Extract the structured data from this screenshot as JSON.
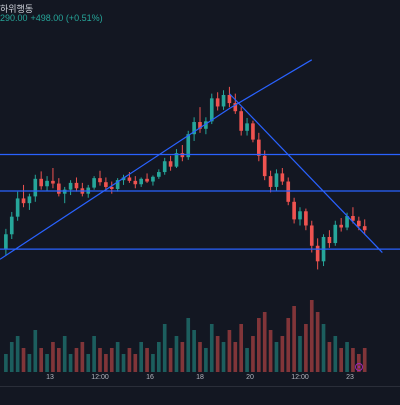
{
  "header": {
    "title": "하위행동",
    "values_text": "290.00",
    "change_text": "+498.00 (+0.51%)"
  },
  "colors": {
    "background": "#131722",
    "up": "#26a69a",
    "down": "#ef5350",
    "trendline": "#2962ff",
    "volume_up": "rgba(38,166,154,0.5)",
    "volume_down": "rgba(239,83,80,0.5)",
    "marker": "#9c27b0"
  },
  "chart_data": {
    "type": "candlestick",
    "x_ticks": [
      "13",
      "12:00",
      "16",
      "18",
      "20",
      "12:00",
      "23"
    ],
    "candles": [
      [
        2.0,
        5.0,
        1.0,
        4.2
      ],
      [
        4.2,
        7.5,
        3.5,
        6.8
      ],
      [
        6.8,
        10.5,
        6.2,
        9.5
      ],
      [
        9.5,
        11.5,
        8.2,
        8.8
      ],
      [
        8.8,
        10.2,
        7.8,
        9.8
      ],
      [
        9.8,
        13.0,
        9.0,
        12.4
      ],
      [
        12.4,
        13.5,
        10.8,
        11.3
      ],
      [
        11.3,
        12.8,
        10.6,
        12.1
      ],
      [
        12.1,
        14.0,
        11.0,
        11.7
      ],
      [
        11.7,
        12.5,
        9.8,
        10.2
      ],
      [
        10.2,
        11.2,
        8.8,
        10.8
      ],
      [
        10.8,
        12.2,
        10.0,
        11.8
      ],
      [
        11.8,
        12.6,
        10.5,
        11.0
      ],
      [
        11.0,
        11.8,
        9.8,
        10.2
      ],
      [
        10.2,
        11.5,
        9.6,
        11.1
      ],
      [
        11.1,
        12.8,
        10.8,
        12.5
      ],
      [
        12.5,
        13.6,
        11.4,
        11.9
      ],
      [
        11.9,
        12.6,
        10.6,
        11.2
      ],
      [
        11.2,
        12.0,
        10.2,
        10.9
      ],
      [
        10.9,
        12.5,
        10.5,
        12.2
      ],
      [
        12.2,
        13.0,
        11.5,
        12.6
      ],
      [
        12.6,
        13.4,
        11.8,
        12.1
      ],
      [
        12.1,
        12.8,
        11.0,
        11.6
      ],
      [
        11.6,
        12.6,
        11.2,
        12.4
      ],
      [
        12.4,
        13.2,
        11.8,
        12.0
      ],
      [
        12.0,
        12.9,
        11.4,
        12.7
      ],
      [
        12.7,
        13.8,
        12.4,
        13.4
      ],
      [
        13.4,
        15.5,
        13.0,
        15.0
      ],
      [
        15.0,
        15.8,
        13.6,
        14.2
      ],
      [
        14.2,
        16.8,
        14.0,
        16.2
      ],
      [
        16.2,
        17.4,
        15.0,
        15.6
      ],
      [
        15.6,
        19.5,
        15.2,
        19.0
      ],
      [
        19.0,
        21.5,
        18.0,
        20.8
      ],
      [
        20.8,
        23.0,
        19.2,
        19.8
      ],
      [
        19.8,
        21.5,
        19.0,
        20.9
      ],
      [
        20.9,
        25.0,
        20.5,
        24.3
      ],
      [
        24.3,
        25.2,
        22.5,
        23.1
      ],
      [
        23.1,
        25.5,
        22.6,
        24.8
      ],
      [
        24.8,
        26.0,
        23.0,
        23.6
      ],
      [
        23.6,
        25.0,
        22.0,
        22.4
      ],
      [
        22.4,
        23.0,
        18.8,
        19.5
      ],
      [
        19.5,
        21.4,
        18.8,
        20.6
      ],
      [
        20.6,
        21.0,
        17.8,
        18.2
      ],
      [
        18.2,
        19.2,
        15.0,
        15.8
      ],
      [
        15.8,
        16.6,
        12.2,
        12.8
      ],
      [
        12.8,
        13.6,
        10.4,
        11.2
      ],
      [
        11.2,
        13.8,
        10.6,
        13.2
      ],
      [
        13.2,
        14.0,
        11.5,
        12.0
      ],
      [
        12.0,
        12.6,
        8.5,
        9.0
      ],
      [
        9.0,
        9.6,
        5.8,
        6.4
      ],
      [
        6.4,
        8.2,
        5.5,
        7.6
      ],
      [
        7.6,
        8.0,
        4.8,
        5.5
      ],
      [
        5.5,
        6.2,
        1.5,
        2.5
      ],
      [
        2.5,
        3.6,
        -1.0,
        0.2
      ],
      [
        0.2,
        4.2,
        -0.5,
        3.8
      ],
      [
        3.8,
        4.8,
        2.2,
        2.9
      ],
      [
        2.9,
        6.2,
        2.5,
        5.6
      ],
      [
        5.6,
        6.6,
        4.6,
        5.2
      ],
      [
        5.2,
        7.4,
        4.8,
        6.9
      ],
      [
        6.9,
        8.2,
        5.8,
        6.2
      ],
      [
        6.2,
        6.8,
        4.8,
        5.4
      ],
      [
        5.4,
        6.4,
        4.2,
        4.8
      ]
    ],
    "volumes": [
      3,
      5,
      6,
      4,
      3,
      7,
      4,
      3,
      5,
      4,
      6,
      3,
      4,
      5,
      3,
      6,
      4,
      3,
      4,
      5,
      3,
      4,
      3,
      5,
      4,
      3,
      5,
      8,
      4,
      6,
      5,
      9,
      7,
      5,
      4,
      8,
      6,
      5,
      7,
      5,
      8,
      4,
      6,
      9,
      10,
      7,
      5,
      6,
      9,
      11,
      6,
      8,
      12,
      10,
      8,
      5,
      6,
      4,
      5,
      4,
      3,
      4
    ],
    "trend_lines": [
      {
        "points": [
          [
            -1,
            0.5
          ],
          [
            38,
            22.8
          ],
          [
            52,
            30.0
          ]
        ]
      },
      {
        "points": [
          [
            38,
            25.0
          ],
          [
            64,
            1.5
          ]
        ]
      }
    ],
    "horizontal_lines": [
      16.0,
      10.6,
      2.0
    ],
    "ylim": [
      -7,
      35
    ],
    "xlim": [
      -1,
      67
    ]
  }
}
